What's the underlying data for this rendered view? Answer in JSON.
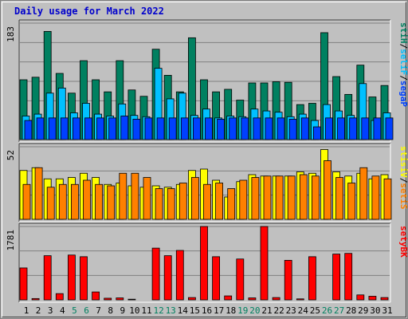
{
  "chart_data": {
    "type": "bar",
    "title": "Daily usage for March 2022",
    "categories": [
      "1",
      "2",
      "3",
      "4",
      "5",
      "6",
      "7",
      "8",
      "9",
      "10",
      "11",
      "12",
      "13",
      "14",
      "15",
      "16",
      "17",
      "18",
      "19",
      "20",
      "21",
      "22",
      "23",
      "24",
      "25",
      "26",
      "27",
      "28",
      "29",
      "30",
      "31"
    ],
    "weekend_days": [
      "5",
      "6",
      "12",
      "13",
      "19",
      "20",
      "26",
      "27"
    ],
    "panels": [
      {
        "id": "hits-files-pages",
        "ymax": 183,
        "ymax_label": "183",
        "legend": [
          "Pages",
          "Files",
          "Hits"
        ],
        "series": [
          {
            "name": "Hits",
            "color": "#008060",
            "values": [
              94,
              98,
              170,
              104,
              73,
              124,
              94,
              75,
              124,
              78,
              68,
              142,
              101,
              75,
              160,
              94,
              75,
              79,
              62,
              89,
              89,
              91,
              90,
              55,
              57,
              168,
              99,
              71,
              117,
              67,
              85
            ]
          },
          {
            "name": "Files",
            "color": "#00c0ff",
            "values": [
              37,
              40,
              73,
              81,
              42,
              57,
              40,
              37,
              56,
              38,
              36,
              112,
              64,
              73,
              38,
              48,
              34,
              37,
              36,
              48,
              45,
              43,
              36,
              40,
              30,
              55,
              45,
              38,
              88,
              30,
              42
            ]
          },
          {
            "name": "Pages",
            "color": "#0040ff",
            "values": [
              30,
              34,
              34,
              34,
              34,
              34,
              34,
              34,
              37,
              32,
              34,
              34,
              34,
              34,
              34,
              34,
              32,
              34,
              34,
              34,
              34,
              34,
              32,
              34,
              20,
              34,
              34,
              34,
              34,
              34,
              34
            ]
          }
        ]
      },
      {
        "id": "visits-sites",
        "ymax": 52,
        "ymax_label": "52",
        "legend": [
          "Sites",
          "Visits"
        ],
        "series": [
          {
            "name": "Visits",
            "color": "#ffff00",
            "values": [
              35,
              37,
              29,
              29,
              30,
              33,
              30,
              25,
              26,
              24,
              23,
              24,
              23,
              25,
              35,
              36,
              28,
              16,
              27,
              32,
              31,
              31,
              31,
              34,
              33,
              50,
              34,
              31,
              33,
              29,
              32
            ]
          },
          {
            "name": "Sites",
            "color": "#ff8000",
            "values": [
              25,
              37,
              23,
              25,
              25,
              28,
              25,
              24,
              33,
              33,
              30,
              22,
              22,
              26,
              30,
              25,
              26,
              22,
              28,
              30,
              31,
              31,
              31,
              32,
              31,
              42,
              30,
              26,
              37,
              31,
              29
            ]
          }
        ]
      },
      {
        "id": "kbytes",
        "ymax": 1781,
        "ymax_label": "1781",
        "legend": [
          "KBytes"
        ],
        "series": [
          {
            "name": "KBytes",
            "color": "#ff0000",
            "values": [
              775,
              32,
              1072,
              152,
              1088,
              1048,
              192,
              40,
              48,
              16,
              0,
              1256,
              1072,
              1200,
              56,
              1781,
              1048,
              96,
              992,
              48,
              1781,
              56,
              960,
              24,
              1048,
              0,
              1112,
              1128,
              120,
              88,
              56
            ]
          }
        ]
      }
    ]
  }
}
